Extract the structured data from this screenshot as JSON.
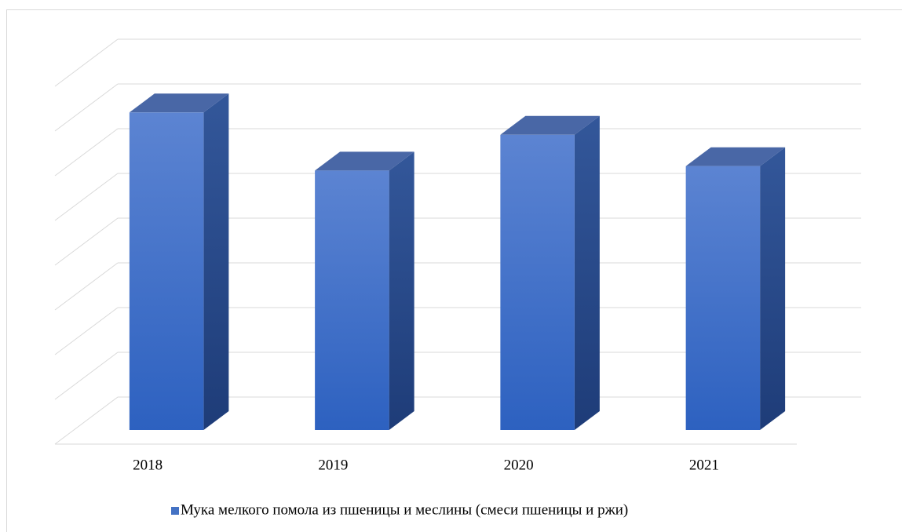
{
  "chart_data": {
    "type": "bar3d",
    "categories": [
      "2018",
      "2019",
      "2020",
      "2021"
    ],
    "series": [
      {
        "name": "Мука мелкого помола из пшеницы и меслины (смеси пшеницы и ржи)",
        "color": "#4472c4",
        "values": [
          7.1,
          5.8,
          6.6,
          5.9
        ]
      }
    ],
    "ylim": [
      0,
      8
    ],
    "yticks": [
      0,
      1,
      2,
      3,
      4,
      5,
      6,
      7,
      8
    ],
    "grid": true,
    "legend": "bottom"
  }
}
